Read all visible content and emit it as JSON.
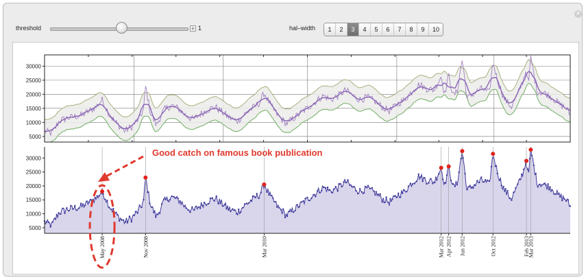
{
  "controls": {
    "threshold_label": "threshold",
    "threshold_value": "1",
    "threshold_level": 0.52,
    "halfwidth_label": "hal–width",
    "halfwidth_options": [
      "1",
      "2",
      "3",
      "4",
      "5",
      "6",
      "7",
      "8",
      "9",
      "10"
    ],
    "halfwidth_selected": "3",
    "close_glyph": "×"
  },
  "colors": {
    "series_line": "#3f3a9a",
    "series_fill": "#d9d6ec",
    "band_fill": "#ececea",
    "band_upper": "#a9b07d",
    "band_lower": "#6fae62",
    "smooth_line": "#8a64b4",
    "peak_marker": "#e0231c",
    "annotation": "#e0392e"
  },
  "chart_data": [
    {
      "type": "line",
      "title": "",
      "xlabel": "",
      "ylabel": "",
      "ylim": [
        3000,
        34000
      ],
      "yticks": [
        "5000",
        "10000",
        "15000",
        "20000",
        "25000",
        "30000"
      ],
      "grid": true,
      "legend": "none",
      "x_range": [
        "2007-09-15",
        "2013-08-25"
      ],
      "series": [
        {
          "points": [
            [
              "2007-09-15",
              7000
            ],
            [
              "2007-10-15",
              6000
            ],
            [
              "2007-11-15",
              10500
            ],
            [
              "2007-12-15",
              11500
            ],
            [
              "2008-01-15",
              12000
            ],
            [
              "2008-02-15",
              12500
            ],
            [
              "2008-03-15",
              14000
            ],
            [
              "2008-04-15",
              15500
            ],
            [
              "2008-05-10",
              18000
            ],
            [
              "2008-06-10",
              12500
            ],
            [
              "2008-07-10",
              9500
            ],
            [
              "2008-08-10",
              7000
            ],
            [
              "2008-09-10",
              8500
            ],
            [
              "2008-10-10",
              11500
            ],
            [
              "2008-10-28",
              14500
            ],
            [
              "2008-11-05",
              23000
            ],
            [
              "2008-11-25",
              13500
            ],
            [
              "2008-12-20",
              9000
            ],
            [
              "2009-01-20",
              14500
            ],
            [
              "2009-02-20",
              16000
            ],
            [
              "2009-03-20",
              15000
            ],
            [
              "2009-04-20",
              12500
            ],
            [
              "2009-05-20",
              11000
            ],
            [
              "2009-06-20",
              13000
            ],
            [
              "2009-07-20",
              14500
            ],
            [
              "2009-08-20",
              15500
            ],
            [
              "2009-09-20",
              13500
            ],
            [
              "2009-10-20",
              11500
            ],
            [
              "2009-11-20",
              10500
            ],
            [
              "2009-12-20",
              13000
            ],
            [
              "2010-01-20",
              15000
            ],
            [
              "2010-02-20",
              17000
            ],
            [
              "2010-03-10",
              20500
            ],
            [
              "2010-04-10",
              15500
            ],
            [
              "2010-05-10",
              12000
            ],
            [
              "2010-06-10",
              9500
            ],
            [
              "2010-07-10",
              11500
            ],
            [
              "2010-08-10",
              13500
            ],
            [
              "2010-09-10",
              15500
            ],
            [
              "2010-10-10",
              17500
            ],
            [
              "2010-11-10",
              19500
            ],
            [
              "2010-12-10",
              18000
            ],
            [
              "2011-01-10",
              19500
            ],
            [
              "2011-02-10",
              21500
            ],
            [
              "2011-03-10",
              19500
            ],
            [
              "2011-04-10",
              18000
            ],
            [
              "2011-05-10",
              19000
            ],
            [
              "2011-06-10",
              17500
            ],
            [
              "2011-07-10",
              15500
            ],
            [
              "2011-08-10",
              14000
            ],
            [
              "2011-09-10",
              16500
            ],
            [
              "2011-10-10",
              18000
            ],
            [
              "2011-11-10",
              21000
            ],
            [
              "2011-12-10",
              23500
            ],
            [
              "2012-01-10",
              22000
            ],
            [
              "2012-02-10",
              21500
            ],
            [
              "2012-03-10",
              26500
            ],
            [
              "2012-03-25",
              20000
            ],
            [
              "2012-04-10",
              27000
            ],
            [
              "2012-04-28",
              19500
            ],
            [
              "2012-05-15",
              21000
            ],
            [
              "2012-06-05",
              32500
            ],
            [
              "2012-06-25",
              18500
            ],
            [
              "2012-07-25",
              20500
            ],
            [
              "2012-08-25",
              22000
            ],
            [
              "2012-09-25",
              20500
            ],
            [
              "2012-10-10",
              31500
            ],
            [
              "2012-10-30",
              24500
            ],
            [
              "2012-11-25",
              18500
            ],
            [
              "2012-12-25",
              15500
            ],
            [
              "2013-01-25",
              21000
            ],
            [
              "2013-02-10",
              24500
            ],
            [
              "2013-02-25",
              29000
            ],
            [
              "2013-03-05",
              23000
            ],
            [
              "2013-03-15",
              33000
            ],
            [
              "2013-04-10",
              21000
            ],
            [
              "2013-05-10",
              20500
            ],
            [
              "2013-06-10",
              19000
            ],
            [
              "2013-07-10",
              16500
            ],
            [
              "2013-08-10",
              15000
            ],
            [
              "2013-08-25",
              12500
            ]
          ]
        }
      ],
      "peak_markers": [
        [
          "2008-05-10",
          18000
        ],
        [
          "2008-11-05",
          23000
        ],
        [
          "2010-03-10",
          20500
        ],
        [
          "2012-03-10",
          26500
        ],
        [
          "2012-04-10",
          27000
        ],
        [
          "2012-06-05",
          32500
        ],
        [
          "2012-10-10",
          31500
        ],
        [
          "2013-02-25",
          29000
        ],
        [
          "2013-03-15",
          33000
        ]
      ],
      "date_labels": [
        {
          "date": "2008-05-10",
          "text": "May 2008"
        },
        {
          "date": "2008-11-05",
          "text": "Nov 2008"
        },
        {
          "date": "2010-03-10",
          "text": "Mar 2010"
        },
        {
          "date": "2012-03-10",
          "text": "Mar 2012"
        },
        {
          "date": "2012-04-10",
          "text": "Apr 2012"
        },
        {
          "date": "2012-06-05",
          "text": "Jun 2012"
        },
        {
          "date": "2012-10-10",
          "text": "Oct 2012"
        },
        {
          "date": "2013-02-25",
          "text": "Feb 2013"
        },
        {
          "date": "2013-03-15",
          "text": "Mar 2013"
        }
      ],
      "annotation": "Good catch on famous book publication"
    }
  ]
}
